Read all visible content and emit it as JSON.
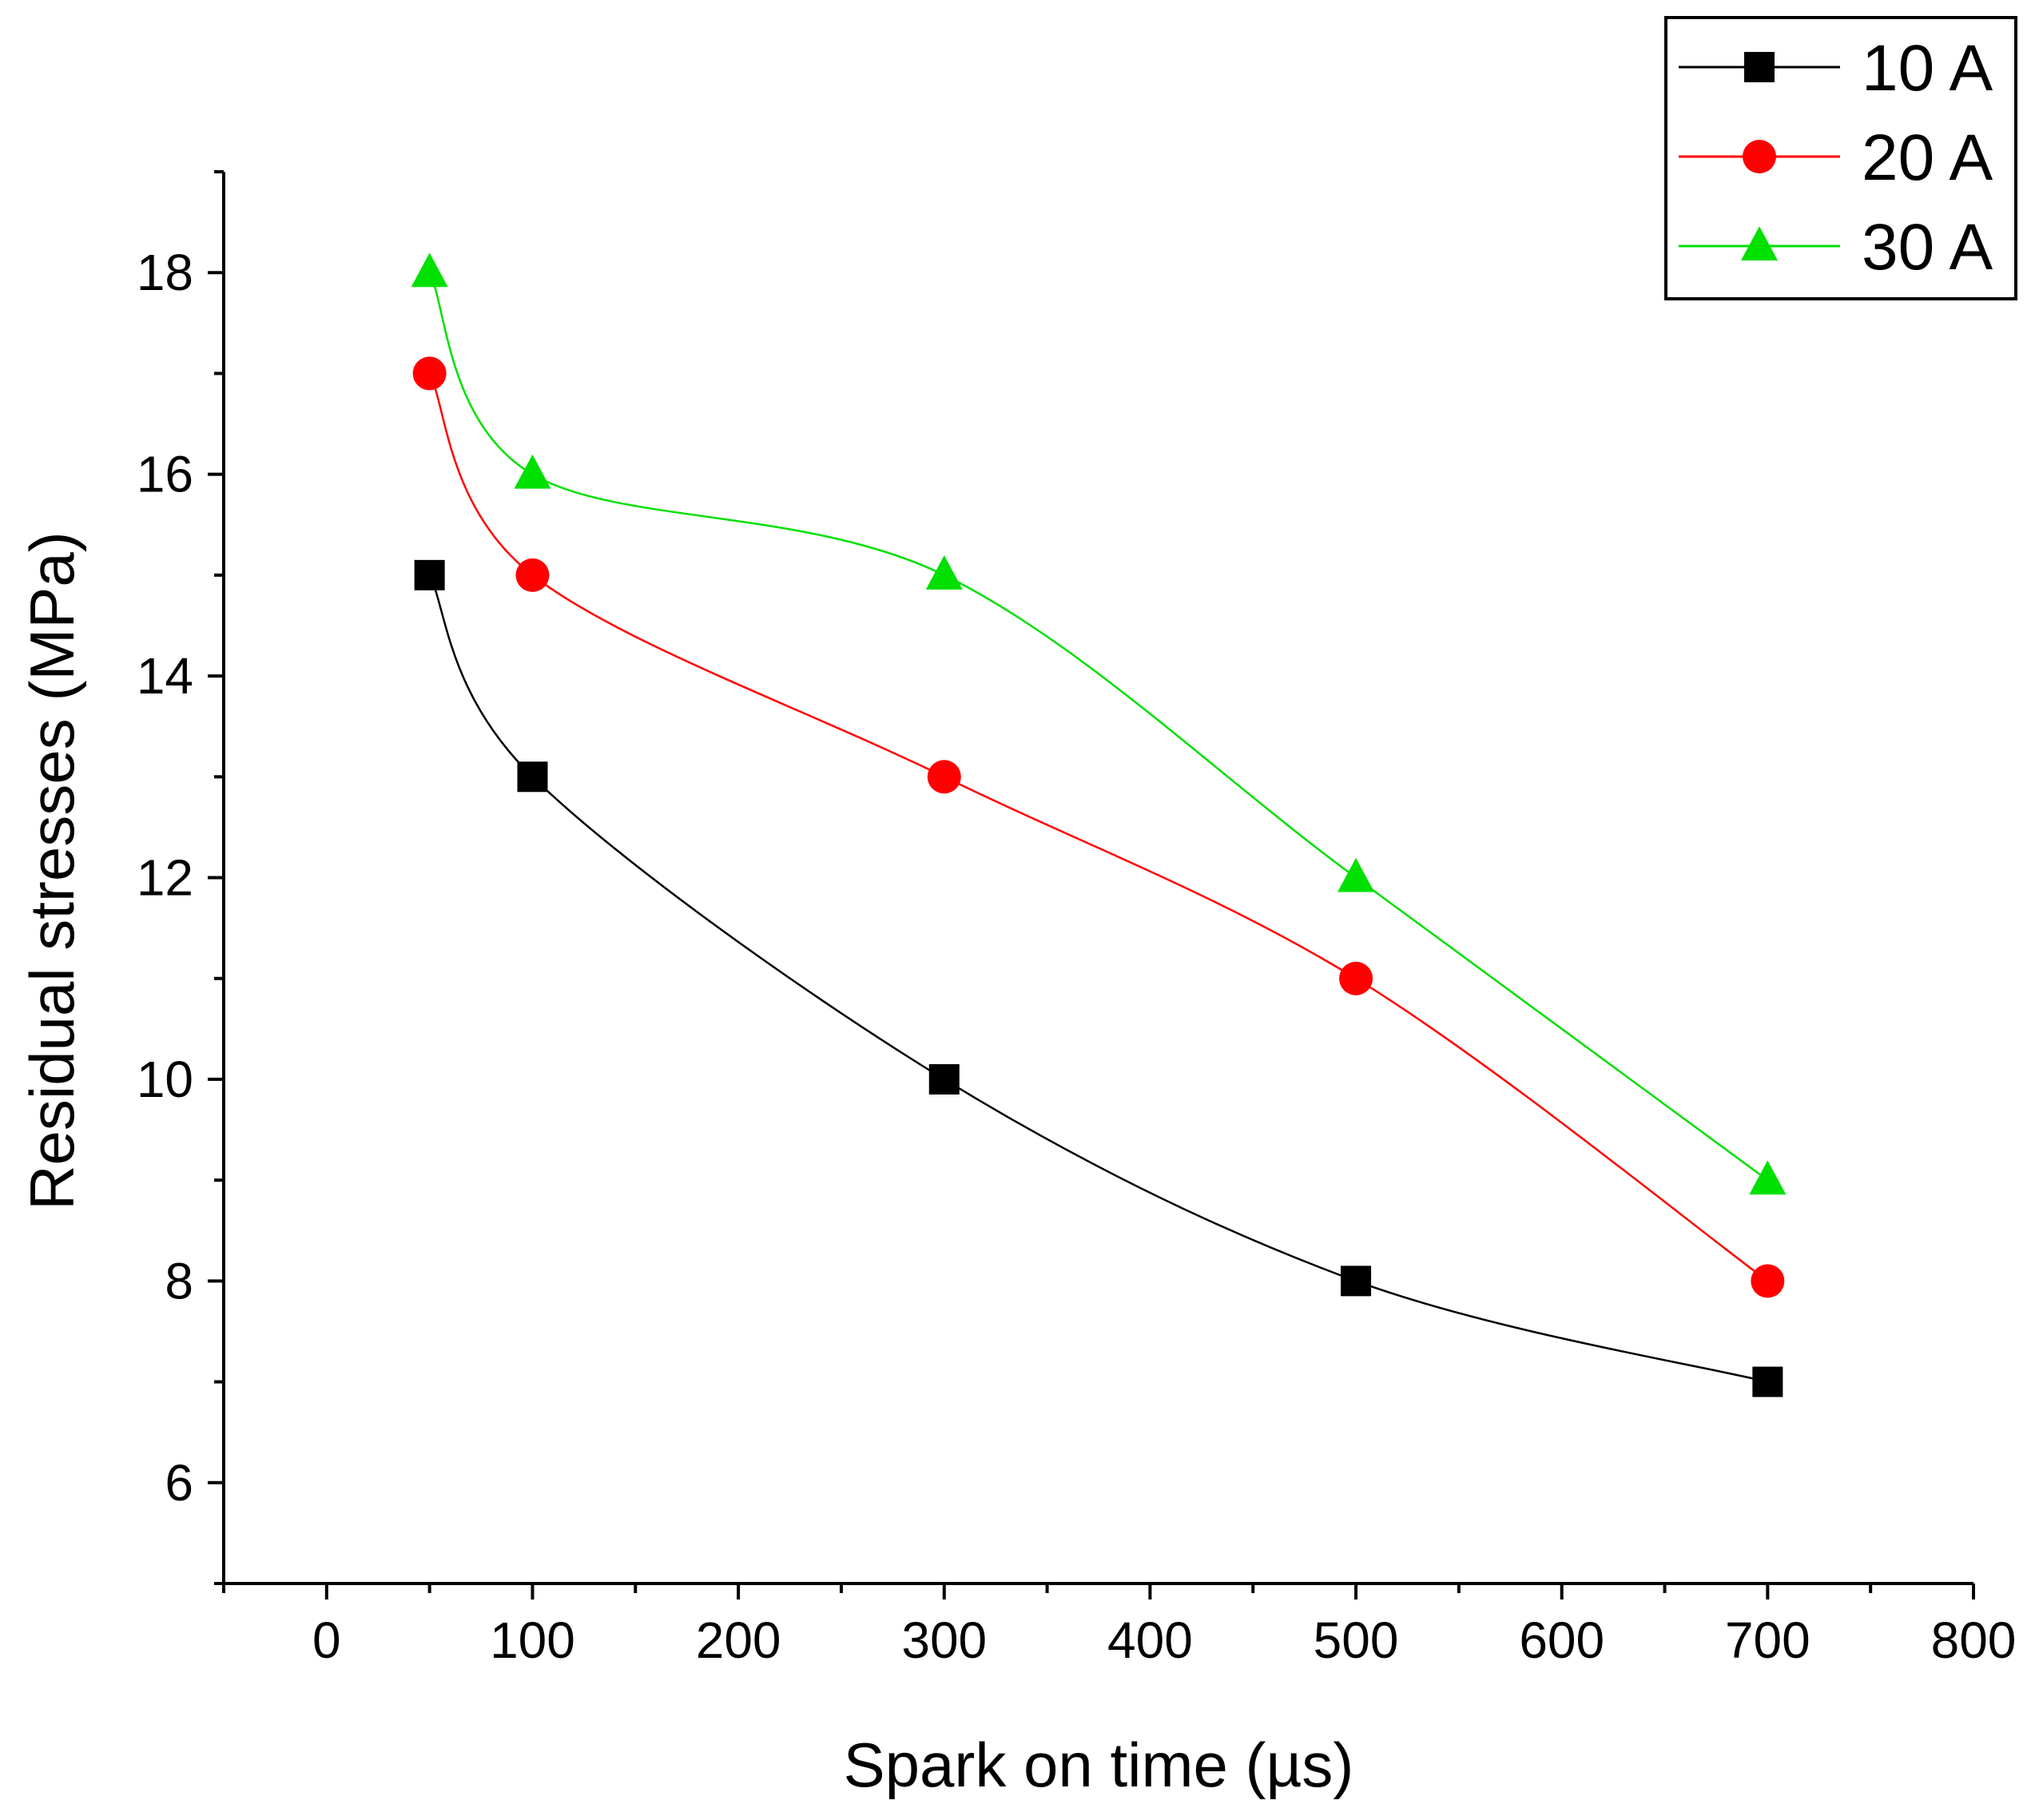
{
  "chart_data": {
    "type": "line",
    "title": "",
    "xlabel": "Spark on time (µs)",
    "ylabel": "Residual stresses (MPa)",
    "xlim": [
      -50,
      800
    ],
    "ylim": [
      5,
      19
    ],
    "x_ticks": [
      0,
      100,
      200,
      300,
      400,
      500,
      600,
      700,
      800
    ],
    "x_tick_labels": [
      "0",
      "100",
      "200",
      "300",
      "400",
      "500",
      "600",
      "700",
      "800"
    ],
    "y_ticks": [
      6,
      8,
      10,
      12,
      14,
      16,
      18
    ],
    "y_tick_labels": [
      "6",
      "8",
      "10",
      "12",
      "14",
      "16",
      "18"
    ],
    "grid": false,
    "legend_position": "top-right",
    "x": [
      50,
      100,
      300,
      500,
      700
    ],
    "series": [
      {
        "name": "10 A",
        "values": [
          15,
          13,
          10,
          8,
          7
        ],
        "color": "#000000",
        "marker": "square"
      },
      {
        "name": "20 A",
        "values": [
          17,
          15,
          13,
          11,
          8
        ],
        "color": "#ff0000",
        "marker": "circle"
      },
      {
        "name": "30 A",
        "values": [
          18,
          16,
          15,
          12,
          9
        ],
        "color": "#00e000",
        "marker": "triangle"
      }
    ]
  }
}
